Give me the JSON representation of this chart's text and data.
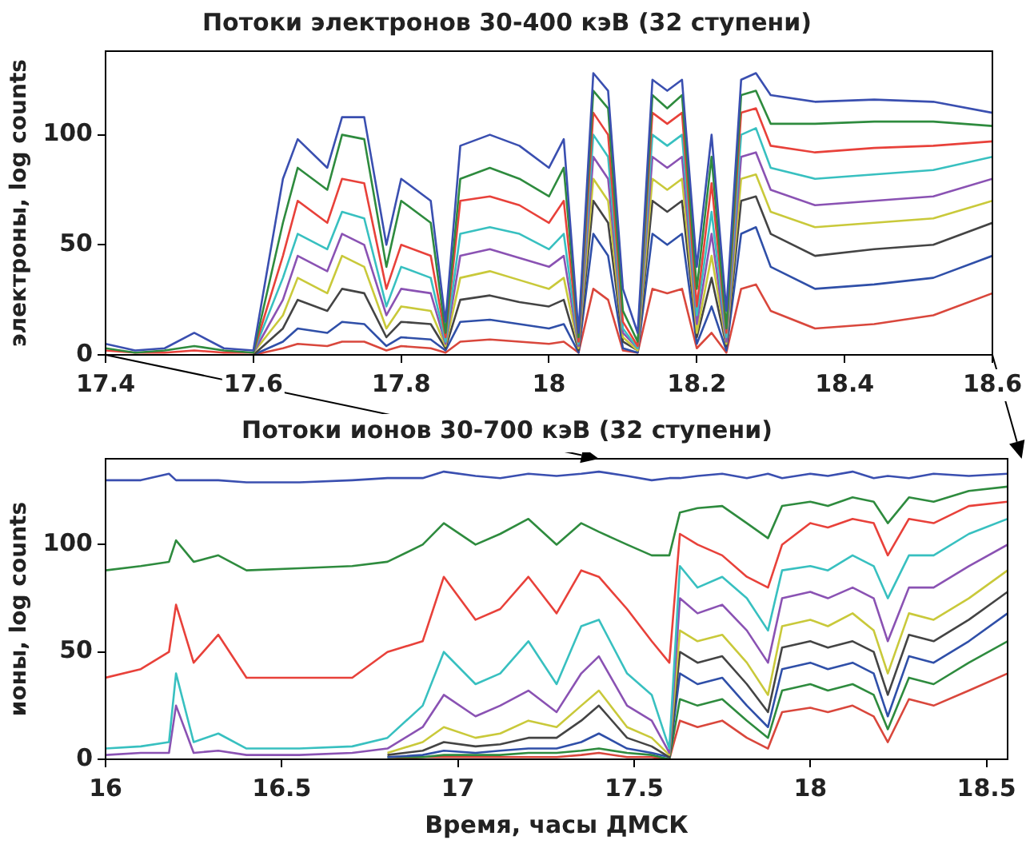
{
  "chart_data": [
    {
      "type": "line",
      "title": "Потоки электронов 30-400 кэВ (32 ступени)",
      "ylabel": "электроны, log counts",
      "xlim": [
        17.4,
        18.6
      ],
      "xticks": [
        17.4,
        17.6,
        17.8,
        18,
        18.2,
        18.4,
        18.6
      ],
      "ylim": [
        0,
        138
      ],
      "yticks": [
        0,
        50,
        100
      ],
      "marker": "none",
      "legend": false,
      "x": [
        17.4,
        17.44,
        17.48,
        17.52,
        17.56,
        17.6,
        17.64,
        17.66,
        17.7,
        17.72,
        17.75,
        17.78,
        17.8,
        17.84,
        17.86,
        17.88,
        17.92,
        17.96,
        18.0,
        18.02,
        18.04,
        18.06,
        18.08,
        18.1,
        18.12,
        18.14,
        18.16,
        18.18,
        18.2,
        18.22,
        18.24,
        18.26,
        18.28,
        18.3,
        18.36,
        18.44,
        18.52,
        18.6
      ],
      "series": [
        {
          "color": "#3a4fb0",
          "values": [
            5,
            2,
            3,
            10,
            3,
            2,
            80,
            98,
            85,
            108,
            108,
            50,
            80,
            70,
            15,
            95,
            100,
            95,
            85,
            98,
            10,
            128,
            120,
            30,
            10,
            125,
            120,
            125,
            40,
            100,
            20,
            125,
            128,
            118,
            115,
            116,
            115,
            110
          ]
        },
        {
          "color": "#2e8b3e",
          "values": [
            3,
            1,
            2,
            4,
            2,
            1,
            60,
            85,
            75,
            100,
            98,
            40,
            70,
            60,
            10,
            80,
            85,
            80,
            72,
            85,
            8,
            120,
            112,
            20,
            6,
            118,
            112,
            118,
            30,
            90,
            12,
            118,
            120,
            105,
            105,
            106,
            106,
            104
          ]
        },
        {
          "color": "#e8413a",
          "values": [
            2,
            1,
            1,
            2,
            1,
            1,
            45,
            70,
            60,
            80,
            78,
            30,
            50,
            45,
            8,
            70,
            72,
            68,
            60,
            70,
            6,
            110,
            100,
            15,
            4,
            110,
            105,
            110,
            22,
            78,
            10,
            110,
            112,
            95,
            92,
            94,
            95,
            97
          ]
        },
        {
          "color": "#38c0c0",
          "values": [
            null,
            null,
            null,
            null,
            null,
            1,
            35,
            55,
            48,
            65,
            62,
            22,
            40,
            35,
            6,
            55,
            58,
            55,
            48,
            55,
            5,
            100,
            90,
            12,
            3,
            100,
            95,
            100,
            18,
            65,
            8,
            100,
            103,
            85,
            80,
            82,
            84,
            90
          ]
        },
        {
          "color": "#8a52b3",
          "values": [
            null,
            null,
            null,
            null,
            null,
            1,
            25,
            45,
            38,
            55,
            50,
            18,
            30,
            28,
            5,
            45,
            48,
            44,
            40,
            45,
            4,
            90,
            80,
            10,
            3,
            90,
            85,
            90,
            14,
            55,
            6,
            90,
            92,
            75,
            68,
            70,
            72,
            80
          ]
        },
        {
          "color": "#c9c93a",
          "values": [
            null,
            null,
            null,
            null,
            null,
            1,
            18,
            35,
            28,
            45,
            40,
            12,
            22,
            20,
            4,
            35,
            38,
            34,
            30,
            35,
            3,
            80,
            70,
            8,
            2,
            80,
            75,
            80,
            10,
            45,
            5,
            80,
            82,
            65,
            58,
            60,
            62,
            70
          ]
        },
        {
          "color": "#444444",
          "values": [
            null,
            null,
            null,
            null,
            null,
            0,
            12,
            25,
            20,
            30,
            28,
            8,
            15,
            14,
            3,
            25,
            27,
            24,
            22,
            25,
            2,
            70,
            60,
            6,
            2,
            70,
            65,
            70,
            8,
            35,
            4,
            70,
            72,
            55,
            45,
            48,
            50,
            60
          ]
        },
        {
          "color": "#2f4fa8",
          "values": [
            null,
            null,
            null,
            null,
            null,
            0,
            6,
            12,
            10,
            15,
            14,
            4,
            8,
            7,
            2,
            15,
            16,
            14,
            12,
            14,
            1,
            55,
            45,
            3,
            1,
            55,
            50,
            55,
            5,
            22,
            2,
            55,
            58,
            40,
            30,
            32,
            35,
            45
          ]
        },
        {
          "color": "#d9473c",
          "values": [
            null,
            null,
            null,
            null,
            null,
            0,
            3,
            5,
            4,
            6,
            6,
            2,
            4,
            3,
            1,
            6,
            7,
            6,
            5,
            6,
            1,
            30,
            25,
            2,
            1,
            30,
            28,
            30,
            3,
            10,
            1,
            30,
            32,
            20,
            12,
            14,
            18,
            28
          ]
        }
      ]
    },
    {
      "type": "line",
      "title": "Потоки ионов 30-700 кэВ (32 ступени)",
      "xlabel": "Время, часы ДМСК",
      "ylabel": "ионы, log counts",
      "xlim": [
        16,
        18.56
      ],
      "xticks": [
        16,
        16.5,
        17,
        17.5,
        18,
        18.5
      ],
      "ylim": [
        0,
        140
      ],
      "yticks": [
        0,
        50,
        100
      ],
      "marker": "none",
      "legend": false,
      "x": [
        16.0,
        16.1,
        16.18,
        16.2,
        16.25,
        16.32,
        16.4,
        16.55,
        16.7,
        16.8,
        16.9,
        16.96,
        17.05,
        17.12,
        17.2,
        17.28,
        17.35,
        17.4,
        17.48,
        17.55,
        17.6,
        17.63,
        17.68,
        17.75,
        17.82,
        17.88,
        17.92,
        18.0,
        18.05,
        18.12,
        18.18,
        18.22,
        18.28,
        18.35,
        18.45,
        18.56
      ],
      "series": [
        {
          "color": "#3a4fb0",
          "values": [
            130,
            130,
            133,
            130,
            130,
            130,
            129,
            129,
            130,
            131,
            131,
            134,
            132,
            131,
            133,
            132,
            133,
            134,
            132,
            130,
            131,
            131,
            132,
            133,
            131,
            133,
            131,
            133,
            132,
            134,
            131,
            132,
            131,
            133,
            132,
            133
          ]
        },
        {
          "color": "#2e8b3e",
          "values": [
            88,
            90,
            92,
            102,
            92,
            95,
            88,
            89,
            90,
            92,
            100,
            110,
            100,
            105,
            112,
            100,
            110,
            106,
            100,
            95,
            95,
            115,
            117,
            118,
            110,
            103,
            118,
            120,
            118,
            122,
            120,
            110,
            122,
            120,
            125,
            127
          ]
        },
        {
          "color": "#e8413a",
          "values": [
            38,
            42,
            50,
            72,
            45,
            58,
            38,
            38,
            38,
            50,
            55,
            85,
            65,
            70,
            85,
            68,
            88,
            85,
            70,
            55,
            45,
            105,
            100,
            95,
            85,
            80,
            100,
            110,
            108,
            112,
            110,
            95,
            112,
            110,
            118,
            120
          ]
        },
        {
          "color": "#38c0c0",
          "values": [
            5,
            6,
            8,
            40,
            8,
            12,
            5,
            5,
            6,
            10,
            25,
            50,
            35,
            40,
            55,
            35,
            62,
            65,
            40,
            30,
            5,
            90,
            80,
            85,
            75,
            60,
            88,
            90,
            88,
            95,
            90,
            75,
            95,
            95,
            105,
            112
          ]
        },
        {
          "color": "#8a52b3",
          "values": [
            2,
            3,
            3,
            25,
            3,
            4,
            2,
            2,
            3,
            5,
            15,
            30,
            20,
            25,
            32,
            22,
            40,
            48,
            25,
            18,
            3,
            75,
            68,
            72,
            60,
            45,
            75,
            78,
            75,
            80,
            75,
            55,
            80,
            80,
            90,
            100
          ]
        },
        {
          "color": "#c9c93a",
          "values": [
            null,
            null,
            null,
            null,
            null,
            null,
            null,
            null,
            null,
            3,
            8,
            15,
            10,
            12,
            18,
            15,
            25,
            32,
            15,
            10,
            2,
            60,
            55,
            58,
            45,
            30,
            62,
            65,
            62,
            68,
            60,
            40,
            68,
            65,
            75,
            88
          ]
        },
        {
          "color": "#444444",
          "values": [
            null,
            null,
            null,
            null,
            null,
            null,
            null,
            null,
            null,
            2,
            4,
            8,
            6,
            7,
            10,
            10,
            18,
            25,
            10,
            6,
            1,
            50,
            45,
            48,
            35,
            22,
            52,
            55,
            52,
            55,
            50,
            30,
            58,
            55,
            65,
            78
          ]
        },
        {
          "color": "#2f4fa8",
          "values": [
            null,
            null,
            null,
            null,
            null,
            null,
            null,
            null,
            null,
            1,
            2,
            4,
            3,
            4,
            5,
            5,
            8,
            12,
            5,
            3,
            1,
            40,
            35,
            38,
            25,
            15,
            42,
            45,
            42,
            45,
            40,
            20,
            48,
            45,
            55,
            68
          ]
        },
        {
          "color": "#2e8b3e",
          "values": [
            null,
            null,
            null,
            null,
            null,
            null,
            null,
            null,
            null,
            1,
            1,
            2,
            2,
            2,
            3,
            3,
            4,
            5,
            3,
            2,
            0,
            28,
            25,
            28,
            18,
            10,
            32,
            35,
            32,
            35,
            30,
            14,
            38,
            35,
            45,
            55
          ]
        },
        {
          "color": "#d9473c",
          "values": [
            null,
            null,
            null,
            null,
            null,
            null,
            null,
            null,
            null,
            0,
            1,
            1,
            1,
            1,
            1,
            1,
            2,
            3,
            1,
            1,
            0,
            18,
            15,
            18,
            10,
            5,
            22,
            24,
            22,
            25,
            20,
            8,
            28,
            25,
            32,
            40
          ]
        }
      ]
    }
  ]
}
